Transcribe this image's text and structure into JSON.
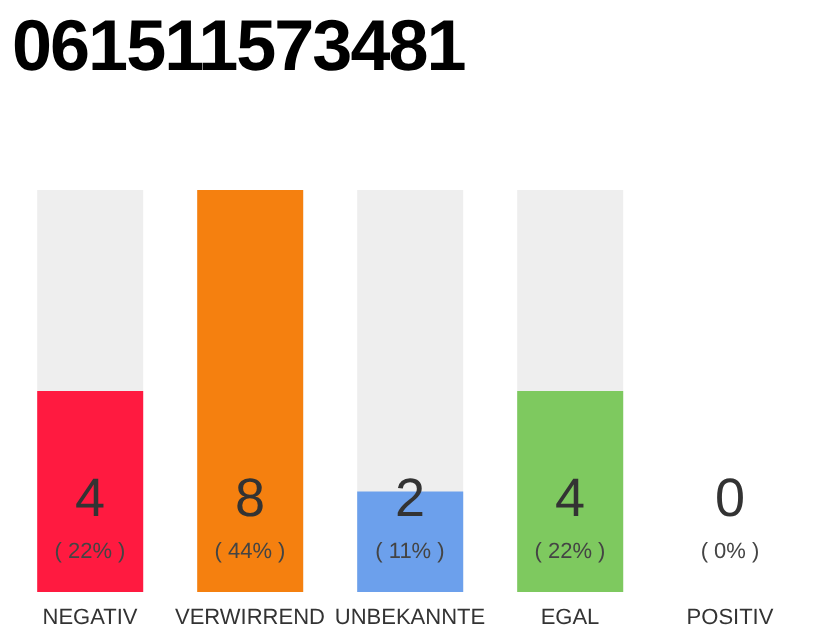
{
  "chart_data": {
    "type": "bar",
    "title": "061511573481",
    "categories": [
      "NEGATIV",
      "VERWIRREND",
      "UNBEKANNTE",
      "EGAL",
      "POSITIV"
    ],
    "values": [
      4,
      8,
      2,
      4,
      0
    ],
    "colors": [
      "#ff1a40",
      "#f5800f",
      "#6ca0ec",
      "#7ec95f",
      "#d0d0d0"
    ],
    "data_labels": true,
    "annotations": [
      "( 22% )",
      "( 44% )",
      "( 11% )",
      "( 22% )",
      "( 0% )"
    ]
  }
}
